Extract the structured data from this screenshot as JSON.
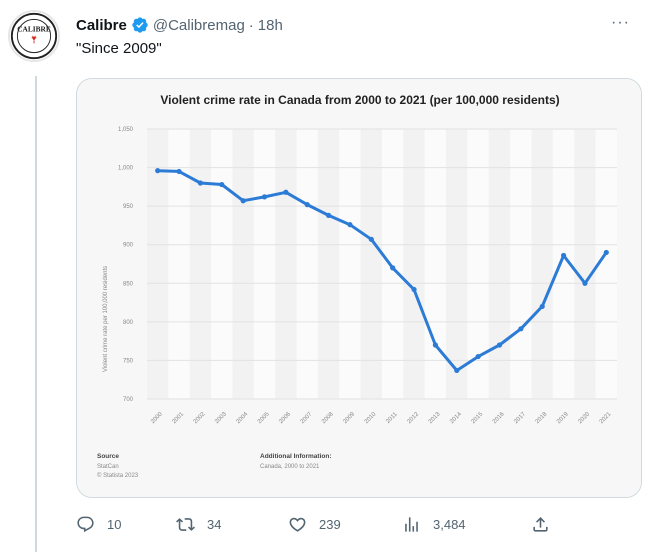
{
  "tweet": {
    "display_name": "Calibre",
    "handle": "@Calibremag",
    "separator": "·",
    "time": "18h",
    "text": "\"Since 2009\"",
    "more_label": "···",
    "avatar_text": "CALIBRE",
    "verified_icon": "verified-badge-icon",
    "accent_color": "#1d9bf0"
  },
  "actions": {
    "replies": "10",
    "retweets": "34",
    "likes": "239",
    "views": "3,484"
  },
  "chart_data": {
    "type": "line",
    "title": "Violent crime rate in Canada from 2000 to 2021 (per 100,000 residents)",
    "ylabel": "Violent crime rate per 100,000 residents",
    "xlabel": "",
    "x": [
      "2000",
      "2001",
      "2002",
      "2003",
      "2004",
      "2005",
      "2006",
      "2007",
      "2008",
      "2009",
      "2010",
      "2011",
      "2012",
      "2013",
      "2014",
      "2015",
      "2016",
      "2017",
      "2018",
      "2019",
      "2020",
      "2021"
    ],
    "values": [
      996,
      995,
      980,
      978,
      957,
      962,
      968,
      952,
      938,
      926,
      907,
      870,
      842,
      770,
      737,
      755,
      770,
      791,
      820,
      886,
      850,
      890
    ],
    "yticks": [
      "1,050",
      "1,000",
      "950",
      "900",
      "850",
      "800",
      "750",
      "700"
    ],
    "ylim": [
      700,
      1050
    ],
    "grid": true,
    "line_color": "#2c7bd6",
    "source_label": "Source",
    "source_lines": [
      "StatCan",
      "© Statista 2023"
    ],
    "info_label": "Additional Information:",
    "info_text": "Canada, 2000 to 2021"
  }
}
